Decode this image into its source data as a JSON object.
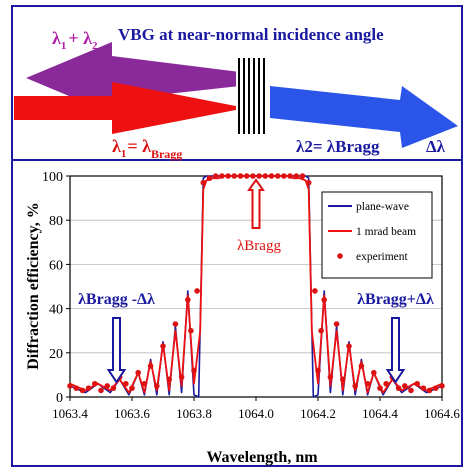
{
  "top_panel": {
    "title": "VBG at near-normal incidence angle",
    "reflected_label_lambda1": "λ",
    "reflected_label_sub1": "1",
    "reflected_label_plus": "+ λ",
    "reflected_label_sub2": "2",
    "incident_label_lambda": "λ",
    "incident_label_sub": "1",
    "incident_label_eq": "= λ",
    "incident_label_bragg_sub": "Bragg",
    "transmitted_label": "λ2= λBragg",
    "delta_label": "Δλ",
    "colors": {
      "title": "#1a1aa0",
      "reflected_arrow": "#8a2a9a",
      "reflected_text": "#b01fa8",
      "incident_arrow": "#ee1111",
      "incident_text": "#dd1111",
      "transmitted_arrow": "#2a55e8",
      "transmitted_text": "#1a1aa0",
      "border": "#1a1aa0"
    }
  },
  "chart_data": {
    "type": "line",
    "xlabel": "Wavelength, nm",
    "ylabel": "Diffraction efficiency, %",
    "xlim": [
      1063.4,
      1064.6
    ],
    "ylim": [
      0,
      100
    ],
    "xticks": [
      "1063.4",
      "1063.6",
      "1063.8",
      "1064.0",
      "1064.2",
      "1064.4",
      "1064.6"
    ],
    "yticks": [
      "0",
      "20",
      "40",
      "60",
      "80",
      "100"
    ],
    "legend_position": "top-right",
    "series": [
      {
        "name": "plane-wave",
        "style": "line",
        "color": "#1a1aa0",
        "x": [
          1063.4,
          1063.45,
          1063.49,
          1063.53,
          1063.56,
          1063.59,
          1063.62,
          1063.64,
          1063.66,
          1063.68,
          1063.7,
          1063.72,
          1063.74,
          1063.76,
          1063.78,
          1063.8,
          1063.815,
          1063.83,
          1063.84,
          1063.85,
          1063.86,
          1063.87,
          1063.88,
          1063.9,
          1064.0,
          1064.1,
          1064.12,
          1064.13,
          1064.14,
          1064.15,
          1064.16,
          1064.17,
          1064.185,
          1064.2,
          1064.22,
          1064.24,
          1064.26,
          1064.28,
          1064.3,
          1064.32,
          1064.34,
          1064.36,
          1064.38,
          1064.41,
          1064.44,
          1064.47,
          1064.51,
          1064.55,
          1064.6
        ],
        "y": [
          5,
          2,
          6,
          2,
          8,
          1,
          11,
          1,
          17,
          1,
          25,
          1,
          32,
          2,
          48,
          1,
          0,
          99,
          100,
          100,
          100,
          100,
          100,
          100,
          100,
          100,
          100,
          100,
          100,
          100,
          100,
          99,
          0,
          1,
          48,
          2,
          32,
          1,
          25,
          1,
          17,
          1,
          11,
          1,
          8,
          2,
          6,
          2,
          5
        ]
      },
      {
        "name": "1 mrad beam",
        "style": "line",
        "color": "#ee1111",
        "x": [
          1063.4,
          1063.45,
          1063.49,
          1063.53,
          1063.56,
          1063.59,
          1063.62,
          1063.64,
          1063.66,
          1063.68,
          1063.7,
          1063.72,
          1063.74,
          1063.76,
          1063.78,
          1063.8,
          1063.82,
          1063.83,
          1063.84,
          1063.86,
          1063.88,
          1063.9,
          1064.0,
          1064.1,
          1064.12,
          1064.14,
          1064.16,
          1064.17,
          1064.18,
          1064.2,
          1064.22,
          1064.24,
          1064.26,
          1064.28,
          1064.3,
          1064.32,
          1064.34,
          1064.36,
          1064.38,
          1064.41,
          1064.44,
          1064.47,
          1064.51,
          1064.55,
          1064.6
        ],
        "y": [
          6,
          3,
          6,
          3,
          8,
          2,
          11,
          2,
          16,
          3,
          24,
          3,
          30,
          5,
          46,
          6,
          30,
          94,
          98,
          99,
          99,
          100,
          100,
          100,
          99,
          99,
          98,
          94,
          30,
          6,
          46,
          5,
          30,
          3,
          24,
          3,
          16,
          2,
          11,
          2,
          8,
          3,
          6,
          3,
          6
        ]
      },
      {
        "name": "experiment",
        "style": "markers",
        "color": "#dd1111",
        "x": [
          1063.4,
          1063.42,
          1063.44,
          1063.46,
          1063.48,
          1063.5,
          1063.52,
          1063.54,
          1063.56,
          1063.58,
          1063.6,
          1063.62,
          1063.64,
          1063.66,
          1063.68,
          1063.7,
          1063.72,
          1063.74,
          1063.76,
          1063.78,
          1063.79,
          1063.8,
          1063.81,
          1063.83,
          1063.85,
          1063.87,
          1063.89,
          1063.91,
          1063.93,
          1063.95,
          1063.97,
          1063.99,
          1064.01,
          1064.03,
          1064.05,
          1064.07,
          1064.09,
          1064.11,
          1064.13,
          1064.15,
          1064.17,
          1064.19,
          1064.2,
          1064.21,
          1064.22,
          1064.24,
          1064.26,
          1064.28,
          1064.3,
          1064.32,
          1064.34,
          1064.36,
          1064.38,
          1064.4,
          1064.42,
          1064.44,
          1064.46,
          1064.48,
          1064.5,
          1064.52,
          1064.54,
          1064.56,
          1064.58,
          1064.6
        ],
        "y": [
          5,
          4,
          3,
          4,
          6,
          3,
          5,
          4,
          9,
          6,
          4,
          11,
          6,
          14,
          5,
          23,
          8,
          33,
          9,
          44,
          30,
          12,
          48,
          97,
          99,
          100,
          100,
          100,
          100,
          100,
          100,
          100,
          100,
          100,
          100,
          100,
          100,
          100,
          100,
          100,
          97,
          48,
          12,
          30,
          44,
          9,
          33,
          8,
          23,
          5,
          14,
          6,
          11,
          4,
          6,
          9,
          4,
          5,
          3,
          6,
          4,
          3,
          4,
          5
        ]
      }
    ],
    "annotations": [
      {
        "text": "λBragg",
        "x": 1064.0,
        "arrow": "up",
        "color": "#dd1111"
      },
      {
        "text": "λBragg -Δλ",
        "x": 1063.55,
        "arrow": "down",
        "color": "#1a1aa0"
      },
      {
        "text": "λBragg+Δλ",
        "x": 1064.45,
        "arrow": "down",
        "color": "#1a1aa0"
      }
    ]
  }
}
